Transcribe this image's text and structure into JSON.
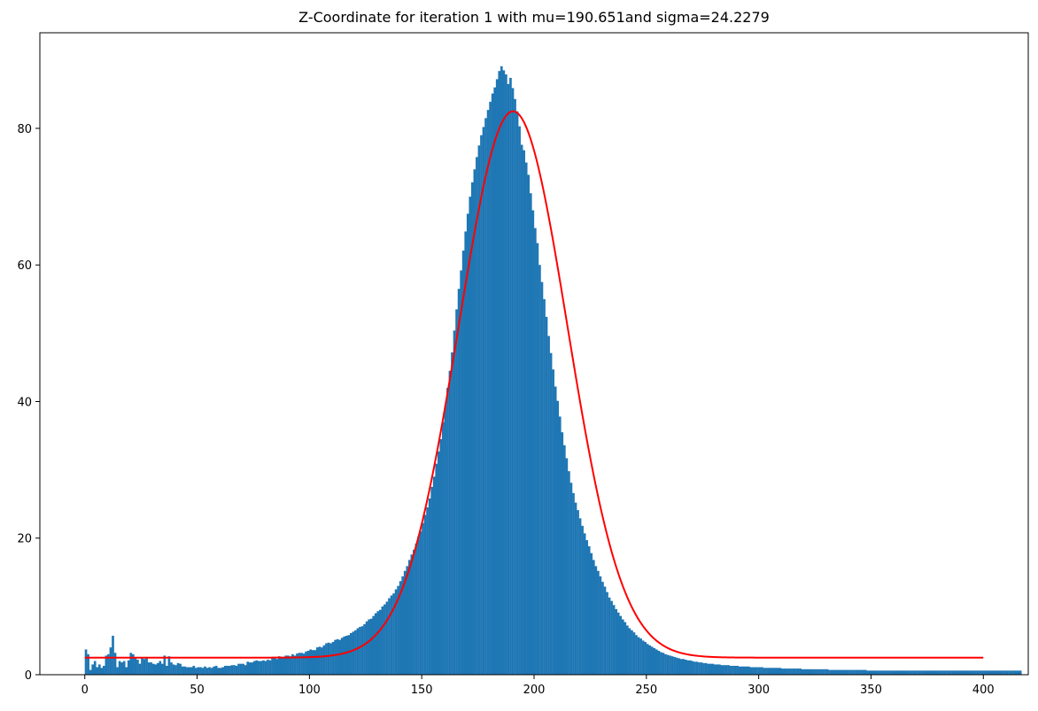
{
  "chart_data": {
    "type": "bar",
    "title": "Z-Coordinate for iteration 1 with mu=190.651and sigma=24.2279",
    "xlabel": "",
    "ylabel": "",
    "xlim": [
      -20,
      420
    ],
    "ylim": [
      0,
      94
    ],
    "x_ticks": [
      0,
      50,
      100,
      150,
      200,
      250,
      300,
      350,
      400
    ],
    "y_ticks": [
      0,
      20,
      40,
      60,
      80
    ],
    "bar_color": "#1f77b4",
    "fit_color": "#ff0000",
    "grid": false,
    "bins": {
      "start": 0,
      "width": 1,
      "counts": [
        3.7,
        3.0,
        0.7,
        1.5,
        2.0,
        1.1,
        1.5,
        1.0,
        1.3,
        2.8,
        3.0,
        4.0,
        5.7,
        3.2,
        1.1,
        2.0,
        1.8,
        2.0,
        1.1,
        2.1,
        3.2,
        3.0,
        2.5,
        2.2,
        1.6,
        2.6,
        2.3,
        2.5,
        1.8,
        1.8,
        1.6,
        1.5,
        1.7,
        2.0,
        1.6,
        2.8,
        1.3,
        2.7,
        1.8,
        1.5,
        1.4,
        1.7,
        1.6,
        1.2,
        1.2,
        1.1,
        1.1,
        1.1,
        1.3,
        1.0,
        1.1,
        1.1,
        1.0,
        1.2,
        1.0,
        1.1,
        1.0,
        1.2,
        1.3,
        1.0,
        1.0,
        1.1,
        1.3,
        1.3,
        1.3,
        1.4,
        1.4,
        1.3,
        1.6,
        1.6,
        1.6,
        1.4,
        1.9,
        1.8,
        1.8,
        2.0,
        2.1,
        2.0,
        2.0,
        2.1,
        2.0,
        2.2,
        2.1,
        2.4,
        2.4,
        2.3,
        2.7,
        2.6,
        2.6,
        2.8,
        2.8,
        2.7,
        3.0,
        2.8,
        3.1,
        3.2,
        3.2,
        3.1,
        3.4,
        3.5,
        3.7,
        3.6,
        3.6,
        4.0,
        4.1,
        4.0,
        4.3,
        4.6,
        4.7,
        4.6,
        4.8,
        5.1,
        5.2,
        5.1,
        5.4,
        5.6,
        5.7,
        5.8,
        6.1,
        6.3,
        6.5,
        6.8,
        7.0,
        7.1,
        7.4,
        7.8,
        8.1,
        8.2,
        8.6,
        9.0,
        9.3,
        9.5,
        10.0,
        10.3,
        10.7,
        11.2,
        11.6,
        11.9,
        12.5,
        13.0,
        13.7,
        14.4,
        15.2,
        15.9,
        16.8,
        17.6,
        18.3,
        19.2,
        20.2,
        21.0,
        22.2,
        23.4,
        24.5,
        25.8,
        27.5,
        29.0,
        30.9,
        32.7,
        34.5,
        37.0,
        39.4,
        42.0,
        44.5,
        47.2,
        50.4,
        53.5,
        56.5,
        59.2,
        62.1,
        64.9,
        67.5,
        70.0,
        72.1,
        74.0,
        75.8,
        77.5,
        79.0,
        80.2,
        81.5,
        82.7,
        83.9,
        85.1,
        86.0,
        87.2,
        88.4,
        89.1,
        88.5,
        87.9,
        86.5,
        87.4,
        85.9,
        84.3,
        82.5,
        80.3,
        77.6,
        76.8,
        75.0,
        73.2,
        70.5,
        68.0,
        65.4,
        63.2,
        60.0,
        57.5,
        55.0,
        52.4,
        49.6,
        47.1,
        44.7,
        42.2,
        40.1,
        37.8,
        35.5,
        33.6,
        31.7,
        29.8,
        28.1,
        26.6,
        25.2,
        24.1,
        22.9,
        21.8,
        20.7,
        19.7,
        18.8,
        17.8,
        16.8,
        15.9,
        15.2,
        14.4,
        13.6,
        12.9,
        12.1,
        11.3,
        10.8,
        10.2,
        9.6,
        9.1,
        8.6,
        8.1,
        7.7,
        7.2,
        6.8,
        6.5,
        6.2,
        5.8,
        5.5,
        5.3,
        5.0,
        4.8,
        4.5,
        4.3,
        4.1,
        3.9,
        3.7,
        3.5,
        3.3,
        3.2,
        3.0,
        2.9,
        2.8,
        2.7,
        2.6,
        2.5,
        2.4,
        2.3,
        2.3,
        2.2,
        2.1,
        2.1,
        2.0,
        1.9,
        1.9,
        1.8,
        1.8,
        1.7,
        1.7,
        1.6,
        1.6,
        1.6,
        1.5,
        1.5,
        1.5,
        1.4,
        1.4,
        1.4,
        1.4,
        1.3,
        1.3,
        1.3,
        1.3,
        1.2,
        1.2,
        1.2,
        1.2,
        1.2,
        1.1,
        1.1,
        1.1,
        1.1,
        1.1,
        1.1,
        1.0,
        1.0,
        1.0,
        1.0,
        1.0,
        1.0,
        1.0,
        1.0,
        0.9,
        0.9,
        0.9,
        0.9,
        0.9,
        0.9,
        0.9,
        0.9,
        0.9,
        0.8,
        0.8,
        0.8,
        0.8,
        0.8,
        0.8,
        0.8,
        0.8,
        0.8,
        0.8,
        0.8,
        0.8,
        0.7,
        0.7,
        0.7,
        0.7,
        0.7,
        0.7,
        0.7,
        0.7,
        0.7,
        0.7,
        0.7,
        0.7,
        0.7,
        0.7,
        0.7,
        0.7,
        0.7,
        0.6,
        0.6,
        0.6,
        0.6,
        0.6,
        0.6,
        0.6,
        0.6,
        0.6,
        0.6,
        0.6,
        0.6,
        0.6,
        0.6,
        0.6,
        0.6,
        0.6,
        0.6,
        0.6,
        0.6,
        0.6,
        0.6,
        0.6,
        0.6,
        0.6,
        0.6,
        0.6,
        0.6,
        0.6,
        0.6,
        0.6,
        0.6,
        0.6,
        0.6,
        0.6,
        0.6,
        0.6,
        0.6,
        0.6,
        0.6,
        0.6,
        0.6,
        0.6,
        0.6,
        0.6,
        0.6,
        0.6,
        0.6,
        0.6,
        0.6,
        0.6,
        0.6,
        0.6,
        0.6,
        0.6,
        0.6,
        0.6,
        0.6,
        0.6,
        0.6,
        0.6,
        0.6,
        0.6,
        0.6,
        0.6,
        0.6,
        0.6,
        0.6,
        0.6
      ]
    },
    "fit_curve": {
      "type": "gaussian_plus_offset",
      "amplitude": 80.0,
      "mu": 190.651,
      "sigma": 24.2279,
      "offset": 2.5,
      "x_range": [
        0,
        400
      ]
    }
  }
}
